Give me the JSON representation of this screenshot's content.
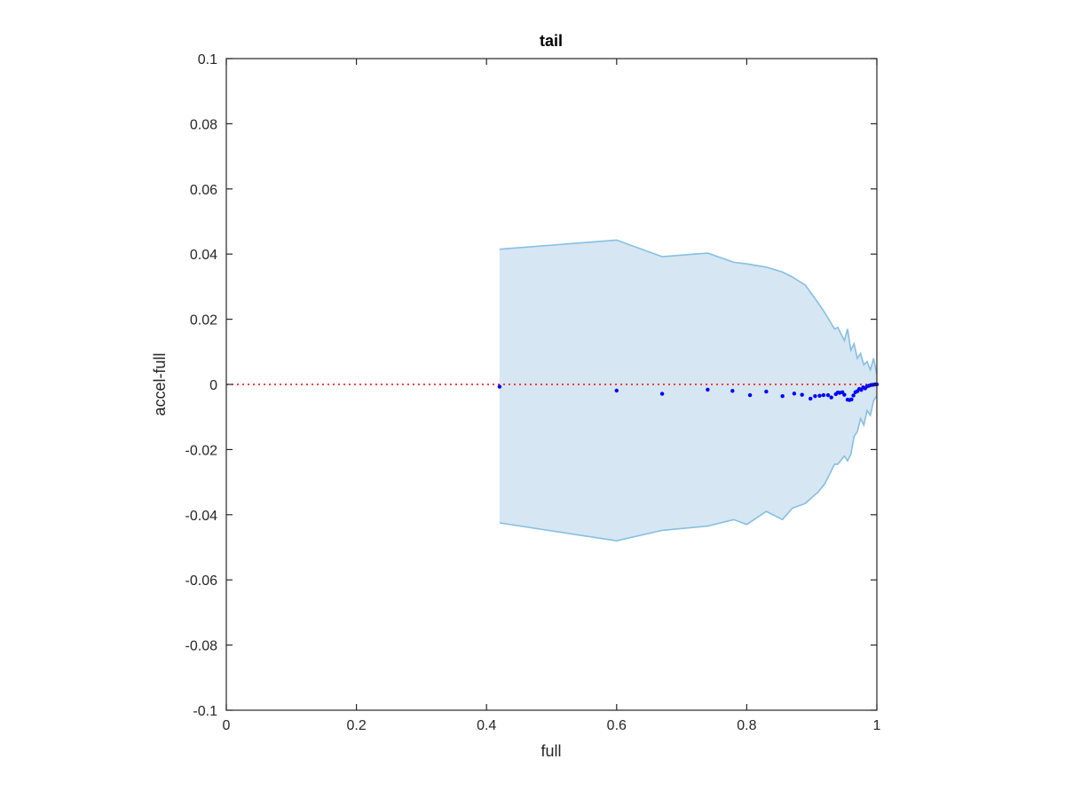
{
  "chart_data": {
    "type": "scatter",
    "title": "tail",
    "xlabel": "full",
    "ylabel": "accel-full",
    "xlim": [
      0,
      1
    ],
    "ylim": [
      -0.1,
      0.1
    ],
    "xticks": [
      "0",
      "0.2",
      "0.4",
      "0.6",
      "0.8",
      "1"
    ],
    "yticks": [
      "-0.1",
      "-0.08",
      "-0.06",
      "-0.04",
      "-0.02",
      "0",
      "0.02",
      "0.04",
      "0.06",
      "0.08",
      "0.1"
    ],
    "xtick_values": [
      0,
      0.2,
      0.4,
      0.6,
      0.8,
      1
    ],
    "ytick_values": [
      -0.1,
      -0.08,
      -0.06,
      -0.04,
      -0.02,
      0,
      0.02,
      0.04,
      0.06,
      0.08,
      0.1
    ],
    "grid": false,
    "colors": {
      "points": "#0000ff",
      "band_fill": "#d6e6f3",
      "band_edge": "#86bfe2",
      "reference_line": "#ff0000",
      "axes": "#262626"
    },
    "reference_line": {
      "y": 0,
      "style": "dotted"
    },
    "band": {
      "x": [
        0.42,
        0.6,
        0.67,
        0.74,
        0.78,
        0.8,
        0.83,
        0.855,
        0.87,
        0.89,
        0.91,
        0.92,
        0.935,
        0.94,
        0.95,
        0.955,
        0.96,
        0.965,
        0.97,
        0.975,
        0.98,
        0.985,
        0.99,
        0.995,
        1.0
      ],
      "upper": [
        0.0415,
        0.0443,
        0.0392,
        0.0403,
        0.0375,
        0.037,
        0.036,
        0.0345,
        0.033,
        0.0305,
        0.025,
        0.022,
        0.017,
        0.0175,
        0.0135,
        0.017,
        0.0105,
        0.0125,
        0.008,
        0.0095,
        0.006,
        0.007,
        0.0045,
        0.008,
        0.003
      ],
      "lower": [
        -0.0425,
        -0.048,
        -0.0448,
        -0.0435,
        -0.0415,
        -0.043,
        -0.039,
        -0.0415,
        -0.038,
        -0.0365,
        -0.033,
        -0.0305,
        -0.0245,
        -0.0245,
        -0.022,
        -0.0235,
        -0.0215,
        -0.016,
        -0.0145,
        -0.0105,
        -0.0125,
        -0.008,
        -0.0095,
        -0.005,
        -0.0035
      ]
    },
    "points": {
      "x": [
        0.42,
        0.6,
        0.67,
        0.74,
        0.778,
        0.805,
        0.83,
        0.855,
        0.873,
        0.885,
        0.898,
        0.905,
        0.912,
        0.918,
        0.925,
        0.93,
        0.937,
        0.94,
        0.943,
        0.947,
        0.95,
        0.955,
        0.958,
        0.961,
        0.964,
        0.967,
        0.97,
        0.973,
        0.976,
        0.979,
        0.982,
        0.985,
        0.988,
        0.991,
        0.994,
        0.997,
        1.0
      ],
      "y": [
        -0.0007,
        -0.0019,
        -0.0029,
        -0.0016,
        -0.002,
        -0.0033,
        -0.0022,
        -0.0036,
        -0.0028,
        -0.0032,
        -0.0044,
        -0.0036,
        -0.0035,
        -0.0033,
        -0.0033,
        -0.004,
        -0.003,
        -0.0025,
        -0.0026,
        -0.0024,
        -0.0032,
        -0.0047,
        -0.0048,
        -0.0046,
        -0.0034,
        -0.0024,
        -0.0021,
        -0.0014,
        -0.0017,
        -0.0009,
        -0.0012,
        -0.0006,
        -0.0004,
        -0.0002,
        -0.0001,
        0.0,
        0.0
      ]
    }
  }
}
